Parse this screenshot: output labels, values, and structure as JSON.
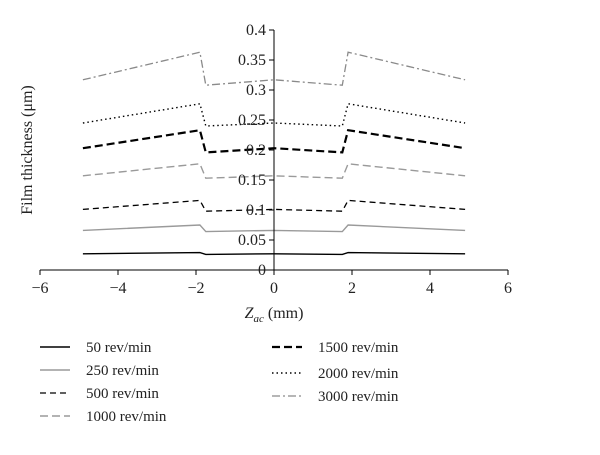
{
  "chart_data": {
    "type": "line",
    "title": "",
    "xlabel": "(mm)",
    "xlabel_var": "Z",
    "xlabel_sub": "ac",
    "ylabel": "Film thickness (μm)",
    "xlim": [
      -6,
      6
    ],
    "ylim": [
      0,
      0.4
    ],
    "x_ticks": [
      -6,
      -4,
      -2,
      0,
      2,
      4,
      6
    ],
    "x_tick_labels": [
      "−6",
      "−4",
      "−2",
      "0",
      "2",
      "4",
      "6"
    ],
    "y_ticks": [
      0,
      0.05,
      0.1,
      0.15,
      0.2,
      0.25,
      0.3,
      0.35,
      0.4
    ],
    "y_tick_labels": [
      "0",
      "0.05",
      "0.1",
      "0.15",
      "0.2",
      "0.25",
      "0.3",
      "0.35",
      "0.4"
    ],
    "grid": false,
    "legend_position": "bottom",
    "series": [
      {
        "name": "50 rev/min",
        "color": "#000000",
        "dash": "solid",
        "width": 1.4,
        "x": [
          -4.9,
          -1.9,
          -1.75,
          0,
          1.75,
          1.9,
          4.9
        ],
        "y": [
          0.027,
          0.029,
          0.026,
          0.027,
          0.026,
          0.029,
          0.027
        ]
      },
      {
        "name": "250 rev/min",
        "color": "#9a9a9a",
        "dash": "solid",
        "width": 1.4,
        "x": [
          -4.9,
          -1.9,
          -1.75,
          0,
          1.75,
          1.9,
          4.9
        ],
        "y": [
          0.066,
          0.075,
          0.064,
          0.066,
          0.064,
          0.075,
          0.066
        ]
      },
      {
        "name": "500 rev/min",
        "color": "#000000",
        "dash": "6,4",
        "width": 1.3,
        "x": [
          -4.9,
          -1.9,
          -1.75,
          0,
          1.75,
          1.9,
          4.9
        ],
        "y": [
          0.101,
          0.116,
          0.098,
          0.101,
          0.098,
          0.116,
          0.101
        ]
      },
      {
        "name": "1000 rev/min",
        "color": "#9a9a9a",
        "dash": "8,4",
        "width": 1.4,
        "x": [
          -4.9,
          -1.9,
          -1.75,
          0,
          1.75,
          1.9,
          4.9
        ],
        "y": [
          0.157,
          0.177,
          0.153,
          0.157,
          0.153,
          0.177,
          0.157
        ]
      },
      {
        "name": "1500 rev/min",
        "color": "#000000",
        "dash": "8,4",
        "width": 2.2,
        "x": [
          -4.9,
          -1.9,
          -1.75,
          0,
          1.75,
          1.9,
          4.9
        ],
        "y": [
          0.203,
          0.233,
          0.196,
          0.203,
          0.196,
          0.233,
          0.203
        ]
      },
      {
        "name": "2000 rev/min",
        "color": "#000000",
        "dash": "1.5,3",
        "width": 1.4,
        "x": [
          -4.9,
          -1.9,
          -1.75,
          0,
          1.75,
          1.9,
          4.9
        ],
        "y": [
          0.245,
          0.277,
          0.24,
          0.245,
          0.24,
          0.277,
          0.245
        ]
      },
      {
        "name": "3000 rev/min",
        "color": "#8a8a8a",
        "dash": "8,3,2,3",
        "width": 1.3,
        "x": [
          -4.9,
          -1.9,
          -1.75,
          0,
          1.75,
          1.9,
          4.9
        ],
        "y": [
          0.317,
          0.363,
          0.308,
          0.317,
          0.308,
          0.363,
          0.317
        ]
      }
    ]
  }
}
